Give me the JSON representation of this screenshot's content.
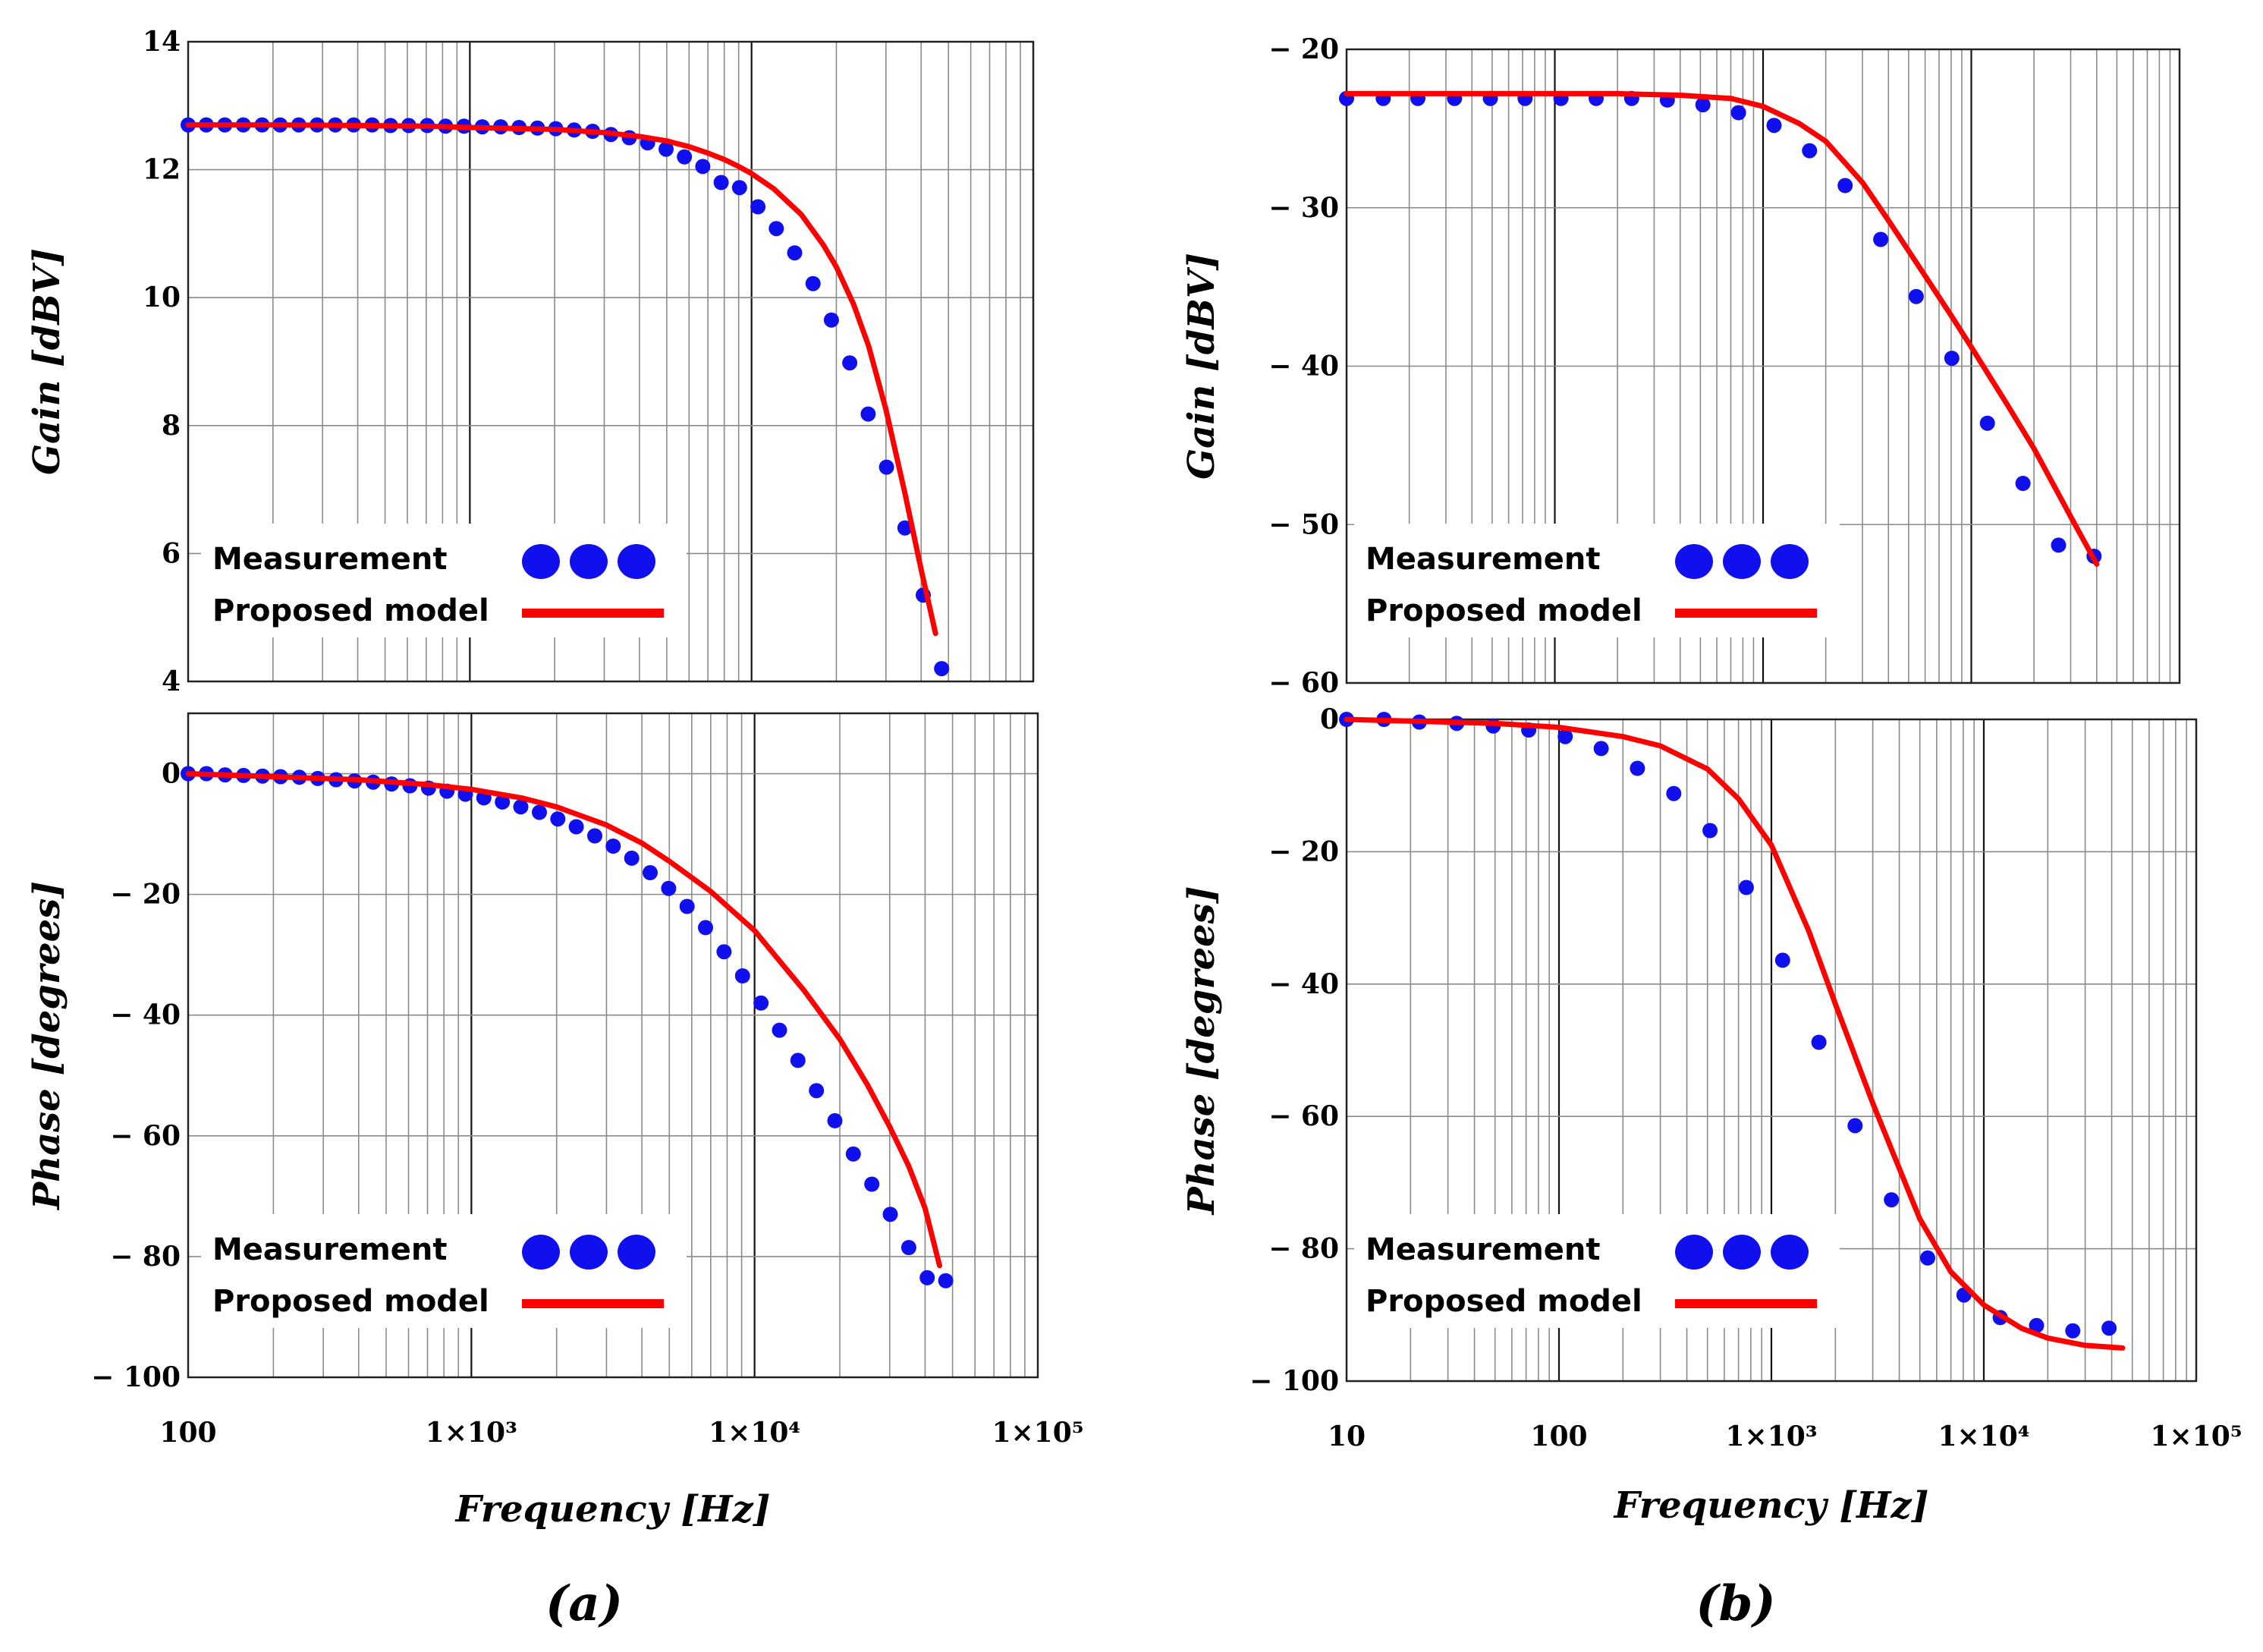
{
  "figure_labels": {
    "a": "(a)",
    "b": "(b)"
  },
  "legend": {
    "measurement": "Measurement",
    "model": "Proposed model"
  },
  "colors": {
    "measurement": "#1010ee",
    "model": "#ff0000",
    "grid": "#8a8a8a",
    "frame": "#222222"
  },
  "chart_data": [
    {
      "id": "a-gain",
      "type": "line",
      "xscale": "log",
      "xlim": [
        100,
        100000
      ],
      "ylim": [
        4,
        14
      ],
      "yticks": [
        4,
        6,
        8,
        10,
        12,
        14
      ],
      "yticklabels": [
        "4",
        "6",
        "8",
        "10",
        "12",
        "14"
      ],
      "xticks": [],
      "xticklabels": [],
      "ylabel": "Gain [dBV]",
      "xlabel": "",
      "series": [
        {
          "name": "Measurement",
          "style": "markers",
          "x": [
            100,
            116,
            135,
            157,
            183,
            212,
            247,
            287,
            333,
            387,
            450,
            523,
            607,
            706,
            820,
            953,
            1107,
            1287,
            1495,
            1738,
            2019,
            2346,
            2727,
            3168,
            3682,
            4278,
            4972,
            5777,
            6713,
            7801,
            9065,
            10534,
            12241,
            14225,
            16530,
            19208,
            22320,
            25937,
            30140,
            35024,
            40699,
            47295
          ],
          "y": [
            12.7,
            12.7,
            12.7,
            12.7,
            12.7,
            12.7,
            12.7,
            12.7,
            12.7,
            12.7,
            12.7,
            12.69,
            12.69,
            12.69,
            12.68,
            12.68,
            12.67,
            12.67,
            12.66,
            12.65,
            12.64,
            12.62,
            12.6,
            12.55,
            12.5,
            12.42,
            12.32,
            12.2,
            12.05,
            11.8,
            11.72,
            11.42,
            11.08,
            10.7,
            10.22,
            9.65,
            8.98,
            8.18,
            7.35,
            6.4,
            5.35,
            4.2
          ]
        },
        {
          "name": "Proposed model",
          "style": "line",
          "x": [
            100,
            200,
            400,
            700,
            1000,
            2000,
            3000,
            4000,
            5000,
            6000,
            7000,
            8000,
            9000,
            10000,
            12000,
            15000,
            18000,
            20000,
            23000,
            26000,
            30000,
            35000,
            40000,
            45000
          ],
          "y": [
            12.7,
            12.7,
            12.69,
            12.68,
            12.66,
            12.63,
            12.58,
            12.52,
            12.45,
            12.36,
            12.26,
            12.16,
            12.05,
            11.94,
            11.7,
            11.3,
            10.82,
            10.48,
            9.9,
            9.25,
            8.25,
            6.95,
            5.75,
            4.75
          ]
        }
      ]
    },
    {
      "id": "a-phase",
      "type": "line",
      "xscale": "log",
      "xlim": [
        100,
        100000
      ],
      "ylim": [
        -100,
        10
      ],
      "yticks": [
        0,
        -20,
        -40,
        -60,
        -80,
        -100
      ],
      "yticklabels": [
        "0",
        "− 20",
        "− 40",
        "− 60",
        "− 80",
        "− 100"
      ],
      "xticks": [
        100,
        1000,
        10000,
        100000
      ],
      "xticklabels": [
        "100",
        "1×10³",
        "1×10⁴",
        "1×10⁵"
      ],
      "ylabel": "Phase [degrees]",
      "xlabel": "Frequency [Hz]",
      "series": [
        {
          "name": "Measurement",
          "style": "markers",
          "x": [
            100,
            116,
            135,
            157,
            183,
            212,
            247,
            287,
            333,
            387,
            450,
            523,
            607,
            706,
            820,
            953,
            1107,
            1287,
            1495,
            1738,
            2019,
            2346,
            2727,
            3168,
            3682,
            4278,
            4972,
            5777,
            6713,
            7801,
            9065,
            10534,
            12241,
            14225,
            16530,
            19208,
            22320,
            25937,
            30140,
            35024,
            40699,
            47295
          ],
          "y": [
            0,
            0,
            -0.2,
            -0.3,
            -0.4,
            -0.5,
            -0.6,
            -0.8,
            -1,
            -1.2,
            -1.4,
            -1.7,
            -2,
            -2.4,
            -2.9,
            -3.4,
            -4,
            -4.7,
            -5.5,
            -6.4,
            -7.5,
            -8.8,
            -10.3,
            -12,
            -14,
            -16.4,
            -19,
            -22,
            -25.5,
            -29.5,
            -33.5,
            -38,
            -42.5,
            -47.5,
            -52.5,
            -57.5,
            -63,
            -68,
            -73,
            -78.5,
            -83.5,
            -84
          ]
        },
        {
          "name": "Proposed model",
          "style": "line",
          "x": [
            100,
            200,
            400,
            700,
            1000,
            1500,
            2000,
            3000,
            4000,
            5000,
            7000,
            10000,
            12000,
            15000,
            20000,
            25000,
            30000,
            35000,
            40000,
            45000
          ],
          "y": [
            0,
            -0.5,
            -1,
            -1.8,
            -2.6,
            -4,
            -5.5,
            -8.5,
            -11.5,
            -14.5,
            -19.5,
            -26,
            -30.5,
            -36,
            -44,
            -51.5,
            -58.5,
            -65,
            -72,
            -81.5
          ]
        }
      ]
    },
    {
      "id": "b-gain",
      "type": "line",
      "xscale": "log",
      "xlim": [
        10,
        100000
      ],
      "ylim": [
        -60,
        -20
      ],
      "yticks": [
        -20,
        -30,
        -40,
        -50,
        -60
      ],
      "yticklabels": [
        "− 20",
        "− 30",
        "− 40",
        "− 50",
        "− 60"
      ],
      "xticks": [],
      "xticklabels": [],
      "ylabel": "Gain [dBV]",
      "xlabel": "",
      "series": [
        {
          "name": "Measurement",
          "style": "markers",
          "x": [
            10,
            15,
            22,
            33,
            49,
            72,
            107,
            158,
            234,
            347,
            514,
            762,
            1129,
            1673,
            2478,
            3672,
            5441,
            8063,
            11947,
            17703,
            26232,
            38870
          ],
          "y": [
            -23.1,
            -23.1,
            -23.1,
            -23.1,
            -23.1,
            -23.1,
            -23.1,
            -23.1,
            -23.1,
            -23.2,
            -23.5,
            -24,
            -24.8,
            -26.4,
            -28.6,
            -32,
            -35.6,
            -39.5,
            -43.6,
            -47.4,
            -51.3,
            -52
          ]
        },
        {
          "name": "Proposed model",
          "style": "line",
          "x": [
            10,
            50,
            100,
            200,
            400,
            700,
            1000,
            1500,
            2000,
            3000,
            4000,
            6000,
            8000,
            10000,
            15000,
            20000,
            30000,
            40000
          ],
          "y": [
            -22.8,
            -22.8,
            -22.8,
            -22.8,
            -22.9,
            -23.1,
            -23.6,
            -24.7,
            -25.8,
            -28.4,
            -30.8,
            -34.3,
            -36.8,
            -38.8,
            -42.5,
            -45.2,
            -49.5,
            -52.5
          ]
        }
      ]
    },
    {
      "id": "b-phase",
      "type": "line",
      "xscale": "log",
      "xlim": [
        10,
        100000
      ],
      "ylim": [
        -100,
        0
      ],
      "yticks": [
        0,
        -20,
        -40,
        -60,
        -80,
        -100
      ],
      "yticklabels": [
        "0",
        "− 20",
        "− 40",
        "− 60",
        "− 80",
        "− 100"
      ],
      "xticks": [
        10,
        100,
        1000,
        10000,
        100000
      ],
      "xticklabels": [
        "10",
        "100",
        "1×10³",
        "1×10⁴",
        "1×10⁵"
      ],
      "ylabel": "Phase [degrees]",
      "xlabel": "Frequency [Hz]",
      "series": [
        {
          "name": "Measurement",
          "style": "markers",
          "x": [
            10,
            15,
            22,
            33,
            49,
            72,
            107,
            158,
            234,
            347,
            514,
            762,
            1129,
            1673,
            2478,
            3672,
            5441,
            8063,
            11947,
            17703,
            26232,
            38870
          ],
          "y": [
            0,
            0,
            -0.4,
            -0.6,
            -1,
            -1.6,
            -2.6,
            -4.4,
            -7.4,
            -11.2,
            -16.8,
            -25.4,
            -36.4,
            -48.8,
            -61.4,
            -72.6,
            -81.4,
            -87,
            -90.4,
            -91.6,
            -92.4,
            -92
          ]
        },
        {
          "name": "Proposed model",
          "style": "line",
          "x": [
            10,
            50,
            100,
            200,
            300,
            500,
            700,
            1000,
            1500,
            2000,
            3000,
            5000,
            7000,
            10000,
            15000,
            20000,
            30000,
            45000
          ],
          "y": [
            0,
            -0.6,
            -1.2,
            -2.6,
            -4,
            -7.5,
            -12,
            -19,
            -32,
            -43,
            -58,
            -75.5,
            -83.5,
            -88.5,
            -92,
            -93.5,
            -94.6,
            -95
          ]
        }
      ]
    }
  ]
}
